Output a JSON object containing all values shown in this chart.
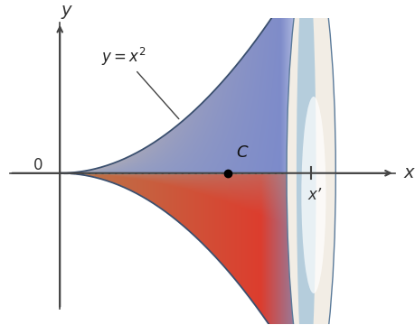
{
  "x_prime": 1.5,
  "c_x": 1.0,
  "axis_color": "#444444",
  "label_y": "y",
  "label_x": "x",
  "label_0": "0",
  "label_C": "C",
  "label_xprime": "x’",
  "equation": "y = x^2",
  "figsize": [
    4.59,
    3.6
  ],
  "dpi": 100,
  "xlim": [
    -0.35,
    2.05
  ],
  "ylim": [
    -1.55,
    1.6
  ]
}
